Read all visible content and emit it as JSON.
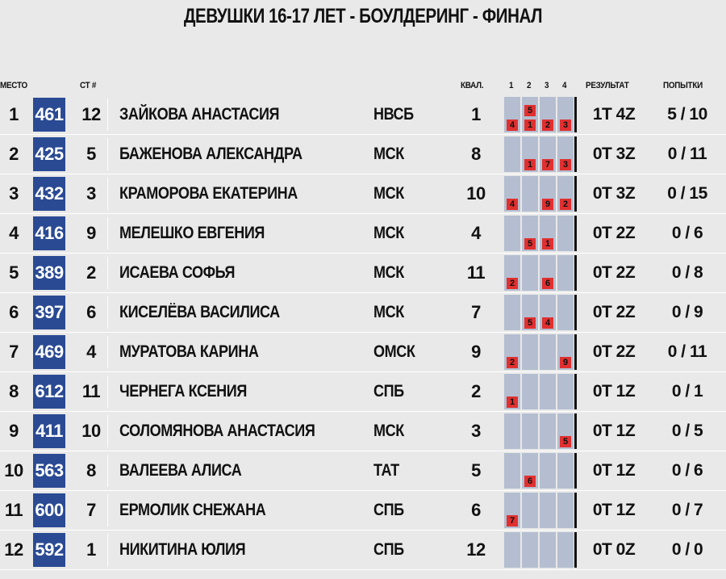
{
  "title": "ДЕВУШКИ 16-17 ЛЕТ - БОУЛДЕРИНГ - ФИНАЛ",
  "headers": {
    "place": "МЕСТО",
    "start": "СТ #",
    "qual": "КВАЛ.",
    "p1": "1",
    "p2": "2",
    "p3": "3",
    "p4": "4",
    "result": "РЕЗУЛЬТАТ",
    "attempts": "ПОПЫТКИ"
  },
  "colors": {
    "bib": "#2a4a93",
    "problem": "#b4bed0",
    "badge": "#e03030",
    "background": "#e9e9e9"
  },
  "rows": [
    {
      "place": "1",
      "bib": "461",
      "start": "12",
      "name": "ЗАЙКОВА АНАСТАСИЯ",
      "team": "НВСБ",
      "qual": "1",
      "problems": [
        {
          "zone": "4"
        },
        {
          "top": "5",
          "zone": "1"
        },
        {
          "zone": "2"
        },
        {
          "zone": "3"
        }
      ],
      "result": "1T 4Z",
      "attempts": "5 / 10"
    },
    {
      "place": "2",
      "bib": "425",
      "start": "5",
      "name": "БАЖЕНОВА АЛЕКСАНДРА",
      "team": "МСК",
      "qual": "8",
      "problems": [
        {},
        {
          "zone": "1"
        },
        {
          "zone": "7"
        },
        {
          "zone": "3"
        }
      ],
      "result": "0T 3Z",
      "attempts": "0 / 11"
    },
    {
      "place": "3",
      "bib": "432",
      "start": "3",
      "name": "КРАМОРОВА ЕКАТЕРИНА",
      "team": "МСК",
      "qual": "10",
      "problems": [
        {
          "zone": "4"
        },
        {},
        {
          "zone": "9"
        },
        {
          "zone": "2"
        }
      ],
      "result": "0T 3Z",
      "attempts": "0 / 15"
    },
    {
      "place": "4",
      "bib": "416",
      "start": "9",
      "name": "МЕЛЕШКО ЕВГЕНИЯ",
      "team": "МСК",
      "qual": "4",
      "problems": [
        {},
        {
          "zone": "5"
        },
        {
          "zone": "1"
        },
        {}
      ],
      "result": "0T 2Z",
      "attempts": "0 / 6"
    },
    {
      "place": "5",
      "bib": "389",
      "start": "2",
      "name": "ИСАЕВА СОФЬЯ",
      "team": "МСК",
      "qual": "11",
      "problems": [
        {
          "zone": "2"
        },
        {},
        {
          "zone": "6"
        },
        {}
      ],
      "result": "0T 2Z",
      "attempts": "0 / 8"
    },
    {
      "place": "6",
      "bib": "397",
      "start": "6",
      "name": "КИСЕЛЁВА ВАСИЛИСА",
      "team": "МСК",
      "qual": "7",
      "problems": [
        {},
        {
          "zone": "5"
        },
        {
          "zone": "4"
        },
        {}
      ],
      "result": "0T 2Z",
      "attempts": "0 / 9"
    },
    {
      "place": "7",
      "bib": "469",
      "start": "4",
      "name": "МУРАТОВА КАРИНА",
      "team": "ОМСК",
      "qual": "9",
      "problems": [
        {
          "zone": "2"
        },
        {},
        {},
        {
          "zone": "9"
        }
      ],
      "result": "0T 2Z",
      "attempts": "0 / 11"
    },
    {
      "place": "8",
      "bib": "612",
      "start": "11",
      "name": "ЧЕРНЕГА КСЕНИЯ",
      "team": "СПБ",
      "qual": "2",
      "problems": [
        {
          "zone": "1"
        },
        {},
        {},
        {}
      ],
      "result": "0T 1Z",
      "attempts": "0 / 1"
    },
    {
      "place": "9",
      "bib": "411",
      "start": "10",
      "name": "СОЛОМЯНОВА АНАСТАСИЯ",
      "team": "МСК",
      "qual": "3",
      "problems": [
        {},
        {},
        {},
        {
          "zone": "5"
        }
      ],
      "result": "0T 1Z",
      "attempts": "0 / 5"
    },
    {
      "place": "10",
      "bib": "563",
      "start": "8",
      "name": "ВАЛЕЕВА АЛИСА",
      "team": "ТАТ",
      "qual": "5",
      "problems": [
        {},
        {
          "zone": "6"
        },
        {},
        {}
      ],
      "result": "0T 1Z",
      "attempts": "0 / 6"
    },
    {
      "place": "11",
      "bib": "600",
      "start": "7",
      "name": "ЕРМОЛИК СНЕЖАНА",
      "team": "СПБ",
      "qual": "6",
      "problems": [
        {
          "zone": "7"
        },
        {},
        {},
        {}
      ],
      "result": "0T 1Z",
      "attempts": "0 / 7"
    },
    {
      "place": "12",
      "bib": "592",
      "start": "1",
      "name": "НИКИТИНА ЮЛИЯ",
      "team": "СПБ",
      "qual": "12",
      "problems": [
        {},
        {},
        {},
        {}
      ],
      "result": "0T 0Z",
      "attempts": "0 / 0"
    }
  ]
}
